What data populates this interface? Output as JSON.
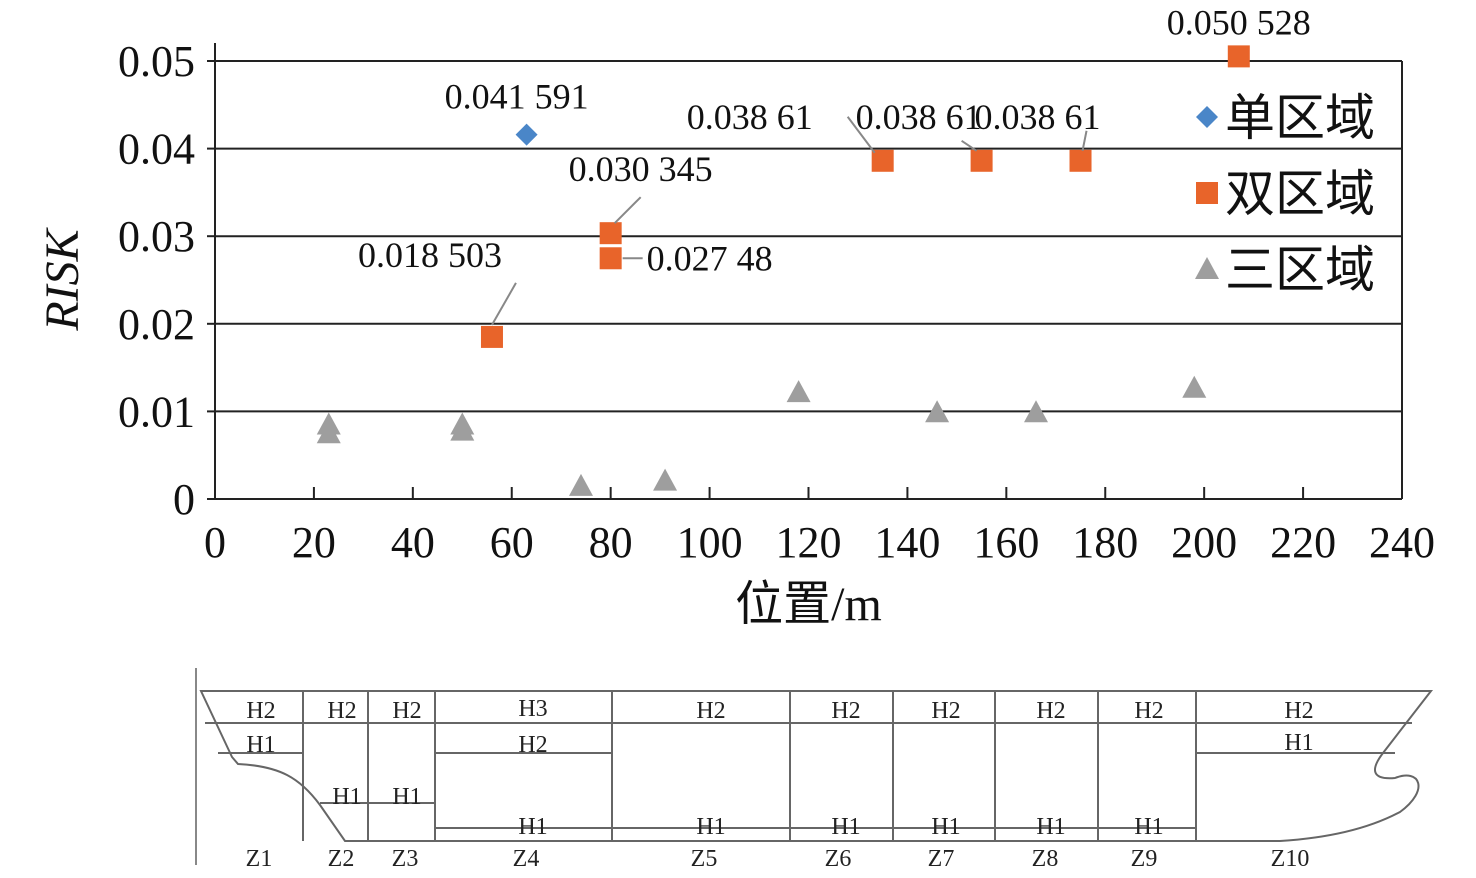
{
  "chart_data": {
    "type": "scatter",
    "xlabel": "位置/m",
    "ylabel": "RISK",
    "xlim": [
      0,
      240
    ],
    "ylim": [
      0,
      0.05
    ],
    "x_ticks": [
      "0",
      "20",
      "40",
      "60",
      "80",
      "100",
      "120",
      "140",
      "160",
      "180",
      "200",
      "220",
      "240"
    ],
    "y_ticks": [
      "0",
      "0.01",
      "0.02",
      "0.03",
      "0.04",
      "0.05"
    ],
    "grid": "horizontal",
    "legend_position": "right",
    "series": [
      {
        "name": "单区域",
        "marker": "diamond",
        "color": "#4a86c8",
        "points": [
          {
            "x": 63,
            "y": 0.041591,
            "label": "0.041 591"
          }
        ]
      },
      {
        "name": "双区域",
        "marker": "square",
        "color": "#e8642a",
        "points": [
          {
            "x": 56,
            "y": 0.018503,
            "label": "0.018 503"
          },
          {
            "x": 80,
            "y": 0.030345,
            "label": "0.030 345"
          },
          {
            "x": 80,
            "y": 0.02748,
            "label": "0.027 48"
          },
          {
            "x": 135,
            "y": 0.03861,
            "label": "0.038 61"
          },
          {
            "x": 155,
            "y": 0.03861,
            "label": "0.038 61"
          },
          {
            "x": 175,
            "y": 0.03861,
            "label": "0.038 61"
          },
          {
            "x": 207,
            "y": 0.050528,
            "label": "0.050 528"
          }
        ]
      },
      {
        "name": "三区域",
        "marker": "triangle",
        "color": "#9e9e9e",
        "points": [
          {
            "x": 23,
            "y": 0.0075
          },
          {
            "x": 23,
            "y": 0.0085
          },
          {
            "x": 50,
            "y": 0.0078
          },
          {
            "x": 50,
            "y": 0.0085
          },
          {
            "x": 74,
            "y": 0.0015
          },
          {
            "x": 91,
            "y": 0.0021
          },
          {
            "x": 118,
            "y": 0.0122
          },
          {
            "x": 146,
            "y": 0.0099
          },
          {
            "x": 166,
            "y": 0.0099
          },
          {
            "x": 198,
            "y": 0.0127
          }
        ]
      }
    ]
  },
  "ship_diagram": {
    "zones": [
      "Z1",
      "Z2",
      "Z3",
      "Z4",
      "Z5",
      "Z6",
      "Z7",
      "Z8",
      "Z9",
      "Z10"
    ],
    "deck_labels": [
      {
        "zone": "Z1",
        "labels": [
          "H2",
          "H1"
        ]
      },
      {
        "zone": "Z2",
        "labels": [
          "H2",
          "H1"
        ]
      },
      {
        "zone": "Z3",
        "labels": [
          "H2",
          "H1"
        ]
      },
      {
        "zone": "Z4",
        "labels": [
          "H3",
          "H2",
          "H1"
        ]
      },
      {
        "zone": "Z5",
        "labels": [
          "H2",
          "H1"
        ]
      },
      {
        "zone": "Z6",
        "labels": [
          "H2",
          "H1"
        ]
      },
      {
        "zone": "Z7",
        "labels": [
          "H2",
          "H1"
        ]
      },
      {
        "zone": "Z8",
        "labels": [
          "H2",
          "H1"
        ]
      },
      {
        "zone": "Z9",
        "labels": [
          "H2",
          "H1"
        ]
      },
      {
        "zone": "Z10",
        "labels": [
          "H2",
          "H1"
        ]
      }
    ]
  }
}
